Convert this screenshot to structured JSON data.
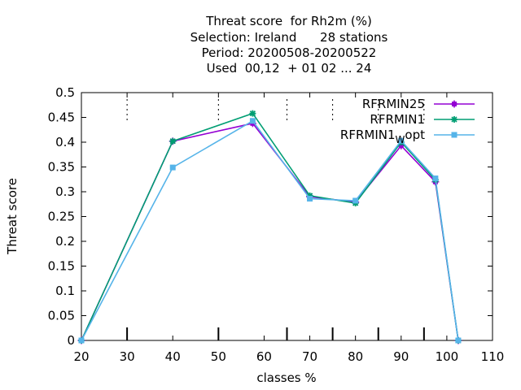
{
  "chart_data": {
    "type": "line",
    "title_lines": [
      "Threat score  for Rh2m (%)",
      "Selection: Ireland      28 stations",
      "Period: 20200508-20200522",
      "Used  00,12  + 01 02 ... 24"
    ],
    "xlabel": "classes %",
    "ylabel": "Threat score",
    "xlim": [
      20,
      110
    ],
    "ylim": [
      0,
      0.5
    ],
    "xticks": [
      "20",
      "30",
      "40",
      "50",
      "60",
      "70",
      "80",
      "90",
      "100",
      "110"
    ],
    "yticks": [
      "0",
      "0.05",
      "0.1",
      "0.15",
      "0.2",
      "0.25",
      "0.3",
      "0.35",
      "0.4",
      "0.45",
      "0.5"
    ],
    "minor_x_marks": [
      30,
      50,
      65,
      75,
      85,
      95
    ],
    "legend_position": "top-right",
    "series": [
      {
        "name": "RFRMIN25",
        "color": "#9400d3",
        "marker": "plus-box",
        "x": [
          20,
          40,
          57.5,
          70,
          80,
          90,
          97.5,
          102.5
        ],
        "y": [
          0,
          0.402,
          0.438,
          0.29,
          0.279,
          0.393,
          0.32,
          0
        ]
      },
      {
        "name": "RFRMIN1",
        "color": "#009e73",
        "marker": "star",
        "x": [
          20,
          40,
          57.5,
          70,
          80,
          90,
          97.5,
          102.5
        ],
        "y": [
          0,
          0.402,
          0.458,
          0.292,
          0.277,
          0.4,
          0.324,
          0
        ]
      },
      {
        "name": "RFRMIN1",
        "name_subscript": "W",
        "name_suffix": "opt",
        "color": "#56b4e9",
        "marker": "square",
        "x": [
          20,
          40,
          57.5,
          70,
          80,
          90,
          97.5,
          102.5
        ],
        "y": [
          0,
          0.349,
          0.443,
          0.286,
          0.282,
          0.403,
          0.327,
          0
        ]
      }
    ]
  }
}
